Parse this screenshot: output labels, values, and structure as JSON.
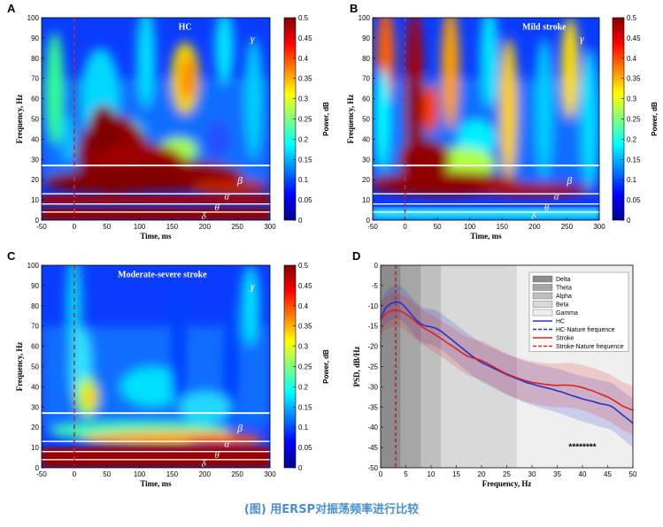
{
  "caption": "(图) 用ERSP对振荡频率进行比较",
  "colors": {
    "accent_caption": "#4a8fd0",
    "hc_line": "#2233cc",
    "stroke_line": "#dd2222"
  },
  "chart_data": [
    {
      "letter": "A",
      "type": "heatmap",
      "title": "HC",
      "xlabel": "Time, ms",
      "ylabel": "Frequency, Hz",
      "xlim": [
        -50,
        300
      ],
      "ylim": [
        0,
        100
      ],
      "xticks": [
        -50,
        0,
        50,
        100,
        150,
        200,
        250,
        300
      ],
      "yticks": [
        0,
        10,
        20,
        30,
        40,
        50,
        60,
        70,
        80,
        90,
        100
      ],
      "colorbar": {
        "label": "Power, dB",
        "range": [
          0,
          0.5
        ],
        "ticks": [
          "0",
          "0.05",
          "0.1",
          "0.15",
          "0.2",
          "0.25",
          "0.3",
          "0.35",
          "0.4",
          "0.45",
          "0.5"
        ]
      },
      "band_labels": [
        "γ",
        "β",
        "α",
        "θ",
        "δ"
      ],
      "band_boundaries_hz": [
        27,
        13,
        8,
        4
      ],
      "stimulus_onset_ms": 0
    },
    {
      "letter": "B",
      "type": "heatmap",
      "title": "Mild stroke",
      "xlabel": "Time, ms",
      "ylabel": "Frequency, Hz",
      "xlim": [
        -50,
        300
      ],
      "ylim": [
        0,
        100
      ],
      "xticks": [
        -50,
        0,
        50,
        100,
        150,
        200,
        250,
        300
      ],
      "yticks": [
        0,
        10,
        20,
        30,
        40,
        50,
        60,
        70,
        80,
        90,
        100
      ],
      "colorbar": {
        "label": "Power, dB",
        "range": [
          0,
          0.5
        ],
        "ticks": [
          "0",
          "0.05",
          "0.1",
          "0.15",
          "0.2",
          "0.25",
          "0.3",
          "0.35",
          "0.4",
          "0.45",
          "0.5"
        ]
      },
      "band_labels": [
        "γ",
        "β",
        "α",
        "θ",
        "δ"
      ],
      "band_boundaries_hz": [
        27,
        13,
        8,
        4
      ],
      "stimulus_onset_ms": 0
    },
    {
      "letter": "C",
      "type": "heatmap",
      "title": "Moderate-severe stroke",
      "xlabel": "Time, ms",
      "ylabel": "Frequency, Hz",
      "xlim": [
        -50,
        300
      ],
      "ylim": [
        0,
        100
      ],
      "xticks": [
        -50,
        0,
        50,
        100,
        150,
        200,
        250,
        300
      ],
      "yticks": [
        0,
        10,
        20,
        30,
        40,
        50,
        60,
        70,
        80,
        90,
        100
      ],
      "colorbar": {
        "label": "Power, dB",
        "range": [
          0,
          0.5
        ],
        "ticks": [
          "0",
          "0.05",
          "0.1",
          "0.15",
          "0.2",
          "0.25",
          "0.3",
          "0.35",
          "0.4",
          "0.45",
          "0.5"
        ]
      },
      "band_labels": [
        "γ",
        "β",
        "α",
        "θ",
        "δ"
      ],
      "band_boundaries_hz": [
        27,
        13,
        8,
        4
      ],
      "stimulus_onset_ms": 0
    },
    {
      "letter": "D",
      "type": "line",
      "xlabel": "Frequency, Hz",
      "ylabel": "PSD, dB/Hz",
      "xlim": [
        0,
        50
      ],
      "ylim": [
        -50,
        0
      ],
      "xticks": [
        0,
        5,
        10,
        15,
        20,
        25,
        30,
        35,
        40,
        45,
        50
      ],
      "yticks": [
        0,
        -5,
        -10,
        -15,
        -20,
        -25,
        -30,
        -35,
        -40,
        -45,
        -50
      ],
      "bands": [
        {
          "name": "Delta",
          "range": [
            0,
            4
          ],
          "color": "#8c8c8c"
        },
        {
          "name": "Theta",
          "range": [
            4,
            8
          ],
          "color": "#a6a6a6"
        },
        {
          "name": "Alpha",
          "range": [
            8,
            12
          ],
          "color": "#bfbfbf"
        },
        {
          "name": "Beta",
          "range": [
            12,
            27
          ],
          "color": "#d9d9d9"
        },
        {
          "name": "Gamma",
          "range": [
            27,
            50
          ],
          "color": "#efefef"
        }
      ],
      "legend": [
        "Delta",
        "Theta",
        "Alpha",
        "Beta",
        "Gamma",
        "HC",
        "HC-Nature frequence",
        "Stroke",
        "Stroke-Nature frequence"
      ],
      "legend_position": "top-right",
      "annotation": "********",
      "x": [
        0,
        1,
        2,
        3,
        4,
        5,
        6,
        7,
        8,
        9,
        10,
        11,
        12,
        13,
        14,
        15,
        16,
        17,
        18,
        19,
        20,
        21,
        22,
        23,
        24,
        25,
        26,
        27,
        28,
        29,
        30,
        31,
        32,
        33,
        34,
        35,
        36,
        37,
        38,
        39,
        40,
        41,
        42,
        43,
        44,
        45,
        46,
        47,
        48,
        49,
        50
      ],
      "series": [
        {
          "name": "HC",
          "color": "#2233cc",
          "values": [
            -13,
            -10.5,
            -9.5,
            -9,
            -9.3,
            -10.5,
            -12,
            -13.5,
            -14.5,
            -15,
            -15.2,
            -15.6,
            -16.3,
            -17.3,
            -18.3,
            -19.3,
            -20.3,
            -21.3,
            -22.3,
            -23.2,
            -24,
            -24.6,
            -25.2,
            -25.8,
            -26.4,
            -27,
            -27.5,
            -28,
            -28.5,
            -29,
            -29.3,
            -29.7,
            -30,
            -30.3,
            -30.6,
            -31,
            -31.3,
            -31.8,
            -32.2,
            -32.6,
            -33,
            -33.3,
            -33.6,
            -34,
            -34.3,
            -34.5,
            -35,
            -36,
            -37,
            -38,
            -39
          ],
          "nature_frequency": 3
        },
        {
          "name": "Stroke",
          "color": "#dd2222",
          "values": [
            -13.5,
            -12,
            -11.3,
            -11,
            -11.3,
            -12,
            -13,
            -14,
            -15,
            -15.8,
            -16.5,
            -17.3,
            -18.1,
            -19,
            -19.8,
            -20.6,
            -21.5,
            -22.3,
            -22.8,
            -23.1,
            -23.5,
            -24.1,
            -24.8,
            -25.5,
            -26.2,
            -26.8,
            -27.3,
            -27.8,
            -28.2,
            -28.6,
            -28.9,
            -29.1,
            -29.3,
            -29.5,
            -29.6,
            -29.7,
            -29.6,
            -29.6,
            -29.7,
            -29.9,
            -30.2,
            -30.6,
            -31,
            -31.5,
            -32,
            -32.5,
            -33.2,
            -34,
            -34.8,
            -35.3,
            -35.8
          ],
          "nature_frequency": 3
        }
      ]
    }
  ]
}
